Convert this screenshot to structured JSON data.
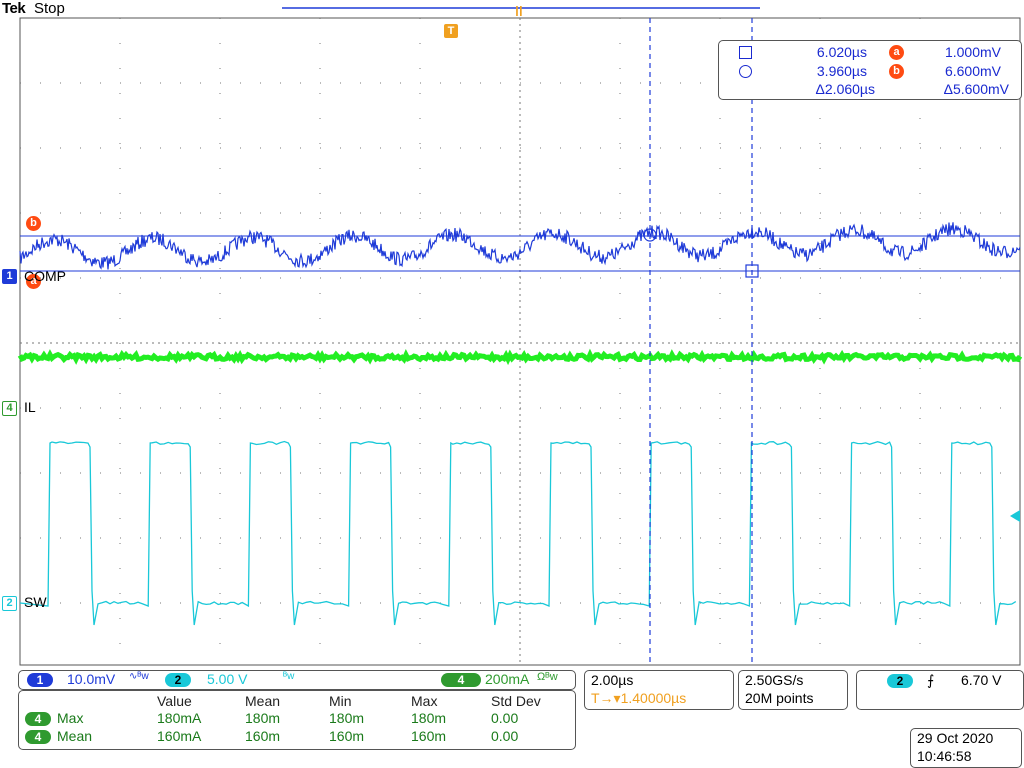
{
  "header": {
    "brand": "Tek",
    "state": "Stop"
  },
  "markers": {
    "trigger_pos": "T",
    "cursor_a": "a",
    "cursor_b": "b"
  },
  "channels": {
    "ch1": {
      "num": "1",
      "label": "COMP",
      "color": "#1f3bd8"
    },
    "ch4": {
      "num": "4",
      "label": "IL",
      "color": "#22ee22"
    },
    "ch2": {
      "num": "2",
      "label": "SW",
      "color": "#19c8d8"
    }
  },
  "cursor_readout": {
    "t1": "6.020µs",
    "t2": "3.960µs",
    "dt": "Δ2.060µs",
    "v1": "1.000mV",
    "v2": "6.600mV",
    "dv": "Δ5.600mV"
  },
  "scale_bar": {
    "ch1_num": "1",
    "ch1_scale": "10.0mV",
    "ch1_suffix": "∿ᴮw",
    "ch2_num": "2",
    "ch2_scale": "5.00 V",
    "ch2_suffix": "ᴮw",
    "ch4_num": "4",
    "ch4_scale": "200mA",
    "ch4_suffix": "Ωᴮw"
  },
  "timebase": {
    "scale": "2.00µs",
    "trigger_offset": "T→▾1.40000µs"
  },
  "acquisition": {
    "rate": "2.50GS/s",
    "points": "20M points"
  },
  "trigger": {
    "source": "2",
    "slope": "⨍",
    "level": "6.70 V"
  },
  "measurements": {
    "headers": [
      "Value",
      "Mean",
      "Min",
      "Max",
      "Std Dev"
    ],
    "rows": [
      {
        "ch": "4",
        "name": "Max",
        "value": "180mA",
        "mean": "180m",
        "min": "180m",
        "max": "180m",
        "std": "0.00"
      },
      {
        "ch": "4",
        "name": "Mean",
        "value": "160mA",
        "mean": "160m",
        "min": "160m",
        "max": "160m",
        "std": "0.00"
      }
    ]
  },
  "datetime": {
    "date": "29 Oct  2020",
    "time": "10:46:58"
  },
  "colors": {
    "ch1": "#1f3bd8",
    "ch2": "#19c8d8",
    "ch4": "#22ee22",
    "cursor": "#1f3bd8",
    "trigger": "#f0a020",
    "label": "#ff4b12"
  }
}
